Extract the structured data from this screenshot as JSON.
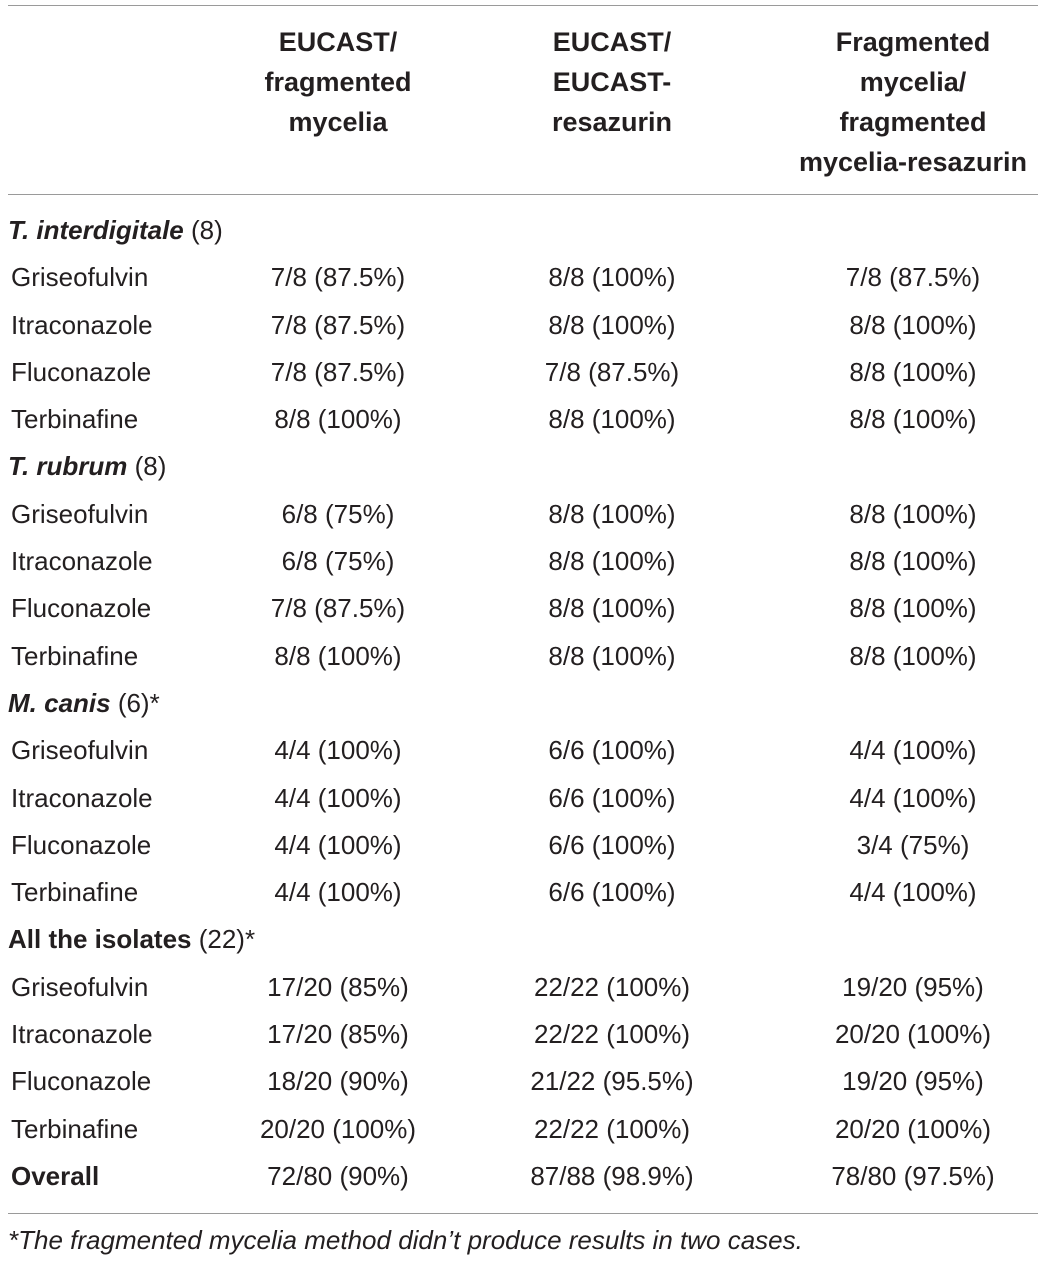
{
  "header": {
    "col1": [
      "EUCAST/",
      "fragmented",
      "mycelia"
    ],
    "col2": [
      "EUCAST/",
      "EUCAST-",
      "resazurin"
    ],
    "col3": [
      "Fragmented",
      "mycelia/",
      "fragmented",
      "mycelia-resazurin"
    ]
  },
  "groups": [
    {
      "name": "T. interdigitale",
      "suffix": " (8)",
      "rows": [
        {
          "drug": "Griseofulvin",
          "v1": "7/8 (87.5%)",
          "v2": "8/8 (100%)",
          "v3": "7/8 (87.5%)"
        },
        {
          "drug": "Itraconazole",
          "v1": "7/8 (87.5%)",
          "v2": "8/8 (100%)",
          "v3": "8/8 (100%)"
        },
        {
          "drug": "Fluconazole",
          "v1": "7/8 (87.5%)",
          "v2": "7/8 (87.5%)",
          "v3": "8/8 (100%)"
        },
        {
          "drug": "Terbinafine",
          "v1": "8/8 (100%)",
          "v2": "8/8 (100%)",
          "v3": "8/8 (100%)"
        }
      ]
    },
    {
      "name": "T. rubrum",
      "suffix": " (8)",
      "rows": [
        {
          "drug": "Griseofulvin",
          "v1": "6/8 (75%)",
          "v2": "8/8 (100%)",
          "v3": "8/8 (100%)"
        },
        {
          "drug": "Itraconazole",
          "v1": "6/8 (75%)",
          "v2": "8/8 (100%)",
          "v3": "8/8 (100%)"
        },
        {
          "drug": "Fluconazole",
          "v1": "7/8 (87.5%)",
          "v2": "8/8 (100%)",
          "v3": "8/8 (100%)"
        },
        {
          "drug": "Terbinafine",
          "v1": "8/8 (100%)",
          "v2": "8/8 (100%)",
          "v3": "8/8 (100%)"
        }
      ]
    },
    {
      "name": "M. canis",
      "suffix": " (6)*",
      "rows": [
        {
          "drug": "Griseofulvin",
          "v1": "4/4 (100%)",
          "v2": "6/6 (100%)",
          "v3": "4/4 (100%)"
        },
        {
          "drug": "Itraconazole",
          "v1": "4/4 (100%)",
          "v2": "6/6 (100%)",
          "v3": "4/4 (100%)"
        },
        {
          "drug": "Fluconazole",
          "v1": "4/4 (100%)",
          "v2": "6/6 (100%)",
          "v3": "3/4 (75%)"
        },
        {
          "drug": "Terbinafine",
          "v1": "4/4 (100%)",
          "v2": "6/6 (100%)",
          "v3": "4/4 (100%)"
        }
      ]
    },
    {
      "name": "All the isolates",
      "suffix": " (22)*",
      "rows": [
        {
          "drug": "Griseofulvin",
          "v1": "17/20 (85%)",
          "v2": "22/22 (100%)",
          "v3": "19/20 (95%)"
        },
        {
          "drug": "Itraconazole",
          "v1": "17/20 (85%)",
          "v2": "22/22 (100%)",
          "v3": "20/20 (100%)"
        },
        {
          "drug": "Fluconazole",
          "v1": "18/20 (90%)",
          "v2": "21/22 (95.5%)",
          "v3": "19/20 (95%)"
        },
        {
          "drug": "Terbinafine",
          "v1": "20/20 (100%)",
          "v2": "22/22 (100%)",
          "v3": "20/20 (100%)"
        }
      ]
    }
  ],
  "overall": {
    "label": "Overall",
    "v1": "72/80 (90%)",
    "v2": "87/88 (98.9%)",
    "v3": "78/80 (97.5%)"
  },
  "footnote": "*The fragmented mycelia method didn’t produce results in two cases."
}
